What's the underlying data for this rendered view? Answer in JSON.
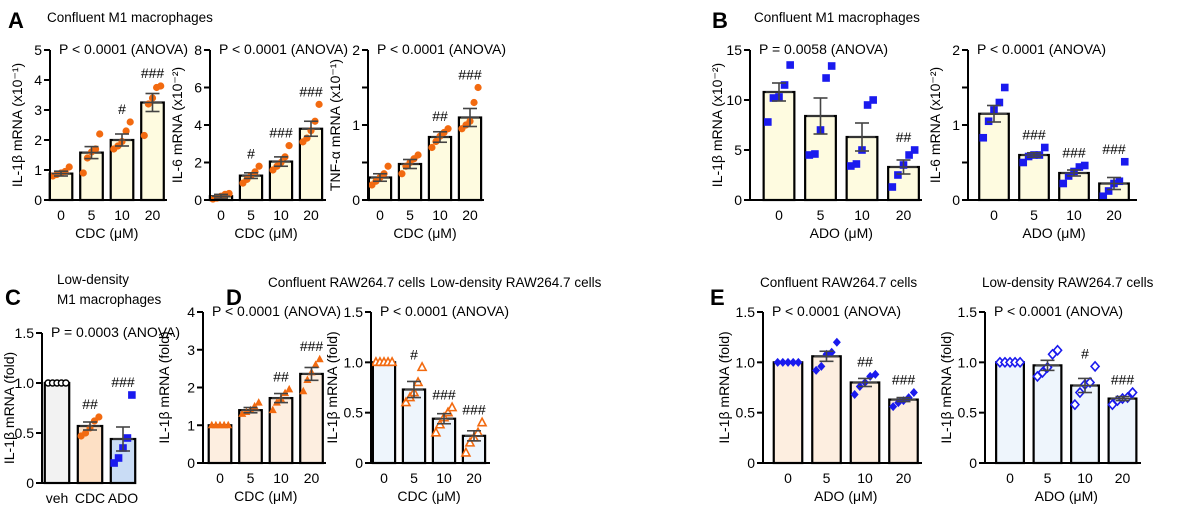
{
  "panels": [
    {
      "letter": "A",
      "title": [
        "Confluent  M1 macrophages"
      ]
    },
    {
      "letter": "B",
      "title": [
        "Confluent  M1 macrophages"
      ]
    },
    {
      "letter": "C",
      "title": [
        "Low-density",
        "M1 macrophages"
      ]
    },
    {
      "letter": "D",
      "title": [
        "Confluent  RAW264.7 cells",
        "Low-density RAW264.7 cells"
      ]
    },
    {
      "letter": "E",
      "title": [
        "Confluent  RAW264.7 cells",
        "Low-density RAW264.7 cells"
      ]
    }
  ],
  "colors": {
    "orange": "#f26a10",
    "blue": "#1a1aee",
    "axis": "#000000",
    "error": "#444444"
  },
  "chart_data": [
    {
      "type": "bar",
      "panel": "A",
      "pvalue": "P < 0.0001 (ANOVA)",
      "ylabel": "IL-1β mRNA (x10⁻¹)",
      "xlabel": "CDC (μM)",
      "categories": [
        "0",
        "5",
        "10",
        "20"
      ],
      "ylim": [
        0,
        5
      ],
      "yticks": [
        0,
        1,
        2,
        3,
        4,
        5
      ],
      "ytick_labels": [
        "0",
        "1",
        "2",
        "3",
        "4",
        "5"
      ],
      "means": [
        0.88,
        1.58,
        2.0,
        3.25
      ],
      "sem": [
        0.08,
        0.2,
        0.2,
        0.3
      ],
      "points": [
        [
          0.8,
          0.85,
          0.9,
          0.95,
          1.1
        ],
        [
          0.9,
          1.4,
          1.6,
          1.7,
          2.2
        ],
        [
          1.7,
          1.8,
          1.95,
          2.3,
          2.6
        ],
        [
          2.15,
          3.2,
          3.4,
          3.75,
          3.8
        ]
      ],
      "significance": [
        "",
        "",
        "#",
        "###"
      ],
      "marker": "circle",
      "marker_fill": [
        "#f26a10"
      ],
      "bar_fill": [
        "#fefbe0"
      ]
    },
    {
      "type": "bar",
      "panel": "A",
      "pvalue": "P < 0.0001 (ANOVA)",
      "ylabel": "IL-6 mRNA (x10⁻²)",
      "xlabel": "CDC (μM)",
      "categories": [
        "0",
        "5",
        "10",
        "20"
      ],
      "ylim": [
        0,
        8
      ],
      "yticks": [
        0,
        2,
        4,
        6,
        8
      ],
      "ytick_labels": [
        "0",
        "2",
        "4",
        "6",
        "8"
      ],
      "means": [
        0.2,
        1.3,
        2.05,
        3.8
      ],
      "sem": [
        0.1,
        0.15,
        0.25,
        0.4
      ],
      "points": [
        [
          0.05,
          0.1,
          0.2,
          0.3,
          0.35
        ],
        [
          0.9,
          1.1,
          1.3,
          1.5,
          1.8
        ],
        [
          1.6,
          1.8,
          2.0,
          2.3,
          2.9
        ],
        [
          3.1,
          3.3,
          3.7,
          4.2,
          5.1
        ]
      ],
      "significance": [
        "",
        "#",
        "###",
        "###"
      ],
      "marker": "circle",
      "marker_fill": [
        "#f26a10"
      ],
      "bar_fill": [
        "#fefbe0"
      ]
    },
    {
      "type": "bar",
      "panel": "A",
      "pvalue": "P < 0.0001 (ANOVA)",
      "ylabel": "TNF-α mRNA (x10⁻¹)",
      "xlabel": "CDC (μM)",
      "categories": [
        "0",
        "5",
        "10",
        "20"
      ],
      "ylim": [
        0,
        2
      ],
      "yticks": [
        0,
        0.5,
        1,
        1.5,
        2
      ],
      "ytick_labels": [
        "0",
        "",
        "1",
        "",
        "2"
      ],
      "means": [
        0.3,
        0.48,
        0.84,
        1.1
      ],
      "sem": [
        0.05,
        0.06,
        0.07,
        0.12
      ],
      "points": [
        [
          0.2,
          0.25,
          0.3,
          0.35,
          0.45
        ],
        [
          0.35,
          0.45,
          0.5,
          0.55,
          0.6
        ],
        [
          0.7,
          0.78,
          0.85,
          0.9,
          0.95
        ],
        [
          0.95,
          1.0,
          1.05,
          1.3,
          1.5
        ]
      ],
      "significance": [
        "",
        "",
        "##",
        "###"
      ],
      "marker": "circle",
      "marker_fill": [
        "#f26a10"
      ],
      "bar_fill": [
        "#fefbe0"
      ]
    },
    {
      "type": "bar",
      "panel": "B",
      "pvalue": "P = 0.0058 (ANOVA)",
      "ylabel": "IL-1β mRNA (x10⁻²)",
      "xlabel": "ADO (μM)",
      "categories": [
        "0",
        "5",
        "10",
        "20"
      ],
      "ylim": [
        0,
        15
      ],
      "yticks": [
        0,
        5,
        10,
        15
      ],
      "ytick_labels": [
        "0",
        "5",
        "10",
        "15"
      ],
      "means": [
        10.8,
        8.4,
        6.3,
        3.3
      ],
      "sem": [
        0.9,
        1.8,
        1.4,
        0.7
      ],
      "points": [
        [
          7.8,
          10.2,
          10.3,
          11.5,
          13.5
        ],
        [
          4.5,
          4.6,
          7.0,
          12.2,
          13.4
        ],
        [
          3.4,
          3.6,
          5.0,
          9.5,
          10.0
        ],
        [
          1.3,
          2.5,
          3.5,
          4.5,
          5.0
        ]
      ],
      "significance": [
        "",
        "",
        "",
        "##"
      ],
      "marker": "square",
      "marker_fill": [
        "#1a1aee"
      ],
      "bar_fill": [
        "#fefbe0"
      ]
    },
    {
      "type": "bar",
      "panel": "B",
      "pvalue": "P < 0.0001 (ANOVA)",
      "ylabel": "IL-6 mRNA (x10⁻²)",
      "xlabel": "ADO (μM)",
      "categories": [
        "0",
        "5",
        "10",
        "20"
      ],
      "ylim": [
        0,
        2
      ],
      "yticks": [
        0,
        0.5,
        1,
        1.5,
        2
      ],
      "ytick_labels": [
        "0",
        "",
        "1",
        "",
        "2"
      ],
      "means": [
        1.15,
        0.6,
        0.36,
        0.22
      ],
      "sem": [
        0.11,
        0.03,
        0.04,
        0.08
      ],
      "points": [
        [
          0.83,
          1.05,
          1.2,
          1.3,
          1.5
        ],
        [
          0.5,
          0.58,
          0.6,
          0.6,
          0.7
        ],
        [
          0.22,
          0.32,
          0.38,
          0.44,
          0.46
        ],
        [
          0.05,
          0.12,
          0.22,
          0.25,
          0.51
        ]
      ],
      "significance": [
        "",
        "###",
        "###",
        "###"
      ],
      "marker": "square",
      "marker_fill": [
        "#1a1aee"
      ],
      "bar_fill": [
        "#fefbe0"
      ]
    },
    {
      "type": "bar",
      "panel": "C",
      "pvalue": "P = 0.0003 (ANOVA)",
      "ylabel": "IL-1β mRNA (fold)",
      "xlabel": "",
      "categories": [
        "veh",
        "CDC",
        "ADO"
      ],
      "ylim": [
        0,
        1.5
      ],
      "yticks": [
        0,
        0.5,
        1.0,
        1.5
      ],
      "ytick_labels": [
        "0",
        "0.5",
        "1.0",
        "1.5"
      ],
      "means": [
        1.0,
        0.57,
        0.44
      ],
      "sem": [
        0,
        0.04,
        0.12
      ],
      "points": [
        [
          1,
          1,
          1,
          1,
          1
        ],
        [
          0.47,
          0.5,
          0.55,
          0.62,
          0.66
        ],
        [
          0.2,
          0.25,
          0.35,
          0.45,
          0.88
        ]
      ],
      "significance": [
        "",
        "##",
        "###"
      ],
      "marker": [
        "open-circle",
        "circle",
        "square"
      ],
      "marker_fill": [
        "#ffffff",
        "#f26a10",
        "#1a1aee"
      ],
      "bar_fill": [
        "#f2f2f2",
        "#fde0c5",
        "#c9dcf5"
      ]
    },
    {
      "type": "bar",
      "panel": "D",
      "pvalue": "P < 0.0001 (ANOVA)",
      "ylabel": "IL-1β mRNA (fold)",
      "xlabel": "CDC (μM)",
      "categories": [
        "0",
        "5",
        "10",
        "20"
      ],
      "ylim": [
        0,
        4
      ],
      "yticks": [
        0,
        1,
        2,
        3,
        4
      ],
      "ytick_labels": [
        "0",
        "1",
        "2",
        "3",
        "4"
      ],
      "means": [
        1.0,
        1.4,
        1.72,
        2.36
      ],
      "sem": [
        0,
        0.07,
        0.12,
        0.17
      ],
      "points": [
        [
          1,
          1,
          1,
          1,
          1
        ],
        [
          1.3,
          1.35,
          1.4,
          1.5,
          1.6
        ],
        [
          1.4,
          1.6,
          1.7,
          1.85,
          1.95
        ],
        [
          1.9,
          2.2,
          2.4,
          2.6,
          2.75
        ]
      ],
      "significance": [
        "",
        "",
        "##",
        "###"
      ],
      "marker": "triangle",
      "marker_fill": [
        "#f26a10"
      ],
      "bar_fill": [
        "#fdeee0"
      ]
    },
    {
      "type": "bar",
      "panel": "D",
      "pvalue": "P < 0.0001 (ANOVA)",
      "ylabel": "IL-1β mRNA (fold)",
      "xlabel": "CDC (μM)",
      "categories": [
        "0",
        "5",
        "10",
        "20"
      ],
      "ylim": [
        0,
        1.5
      ],
      "yticks": [
        0,
        0.5,
        1.0,
        1.5
      ],
      "ytick_labels": [
        "0",
        "0.5",
        "1.0",
        "1.5"
      ],
      "means": [
        1.0,
        0.73,
        0.44,
        0.27
      ],
      "sem": [
        0,
        0.08,
        0.05,
        0.05
      ],
      "points": [
        [
          1,
          1,
          1,
          1,
          1
        ],
        [
          0.6,
          0.65,
          0.7,
          0.8,
          0.95
        ],
        [
          0.3,
          0.38,
          0.45,
          0.5,
          0.55
        ],
        [
          0.1,
          0.2,
          0.25,
          0.3,
          0.4
        ]
      ],
      "significance": [
        "",
        "#",
        "###",
        "###"
      ],
      "marker": "open-triangle",
      "marker_fill": [
        "#ffffff"
      ],
      "bar_fill": [
        "#eef5fc"
      ]
    },
    {
      "type": "bar",
      "panel": "E",
      "pvalue": "P < 0.0001 (ANOVA)",
      "ylabel": "IL-1β mRNA (fold)",
      "xlabel": "ADO (μM)",
      "categories": [
        "0",
        "5",
        "10",
        "20"
      ],
      "ylim": [
        0,
        1.5
      ],
      "yticks": [
        0,
        0.5,
        1.0,
        1.5
      ],
      "ytick_labels": [
        "0",
        "0.5",
        "1.0",
        "1.5"
      ],
      "means": [
        1.0,
        1.06,
        0.8,
        0.63
      ],
      "sem": [
        0,
        0.05,
        0.04,
        0.02
      ],
      "points": [
        [
          1,
          1,
          1,
          1,
          1
        ],
        [
          0.92,
          0.96,
          1.08,
          1.1,
          1.2
        ],
        [
          0.68,
          0.76,
          0.8,
          0.86,
          0.88
        ],
        [
          0.56,
          0.6,
          0.62,
          0.65,
          0.7
        ]
      ],
      "significance": [
        "",
        "",
        "##",
        "###"
      ],
      "marker": "diamond",
      "marker_fill": [
        "#1a1aee"
      ],
      "bar_fill": [
        "#fdeee0"
      ]
    },
    {
      "type": "bar",
      "panel": "E",
      "pvalue": "P < 0.0001 (ANOVA)",
      "ylabel": "IL-1β mRNA (fold)",
      "xlabel": "ADO (μM)",
      "categories": [
        "0",
        "5",
        "10",
        "20"
      ],
      "ylim": [
        0,
        1.5
      ],
      "yticks": [
        0,
        0.5,
        1.0,
        1.5
      ],
      "ytick_labels": [
        "0",
        "0.5",
        "1.0",
        "1.5"
      ],
      "means": [
        1.0,
        0.97,
        0.77,
        0.64
      ],
      "sem": [
        0,
        0.05,
        0.07,
        0.02
      ],
      "points": [
        [
          1,
          1,
          1,
          1,
          1
        ],
        [
          0.86,
          0.9,
          0.95,
          1.08,
          1.12
        ],
        [
          0.58,
          0.7,
          0.78,
          0.8,
          0.96
        ],
        [
          0.58,
          0.62,
          0.64,
          0.65,
          0.7
        ]
      ],
      "significance": [
        "",
        "",
        "#",
        "###"
      ],
      "marker": "open-diamond",
      "marker_fill": [
        "#ffffff"
      ],
      "bar_fill": [
        "#eef5fc"
      ]
    }
  ]
}
